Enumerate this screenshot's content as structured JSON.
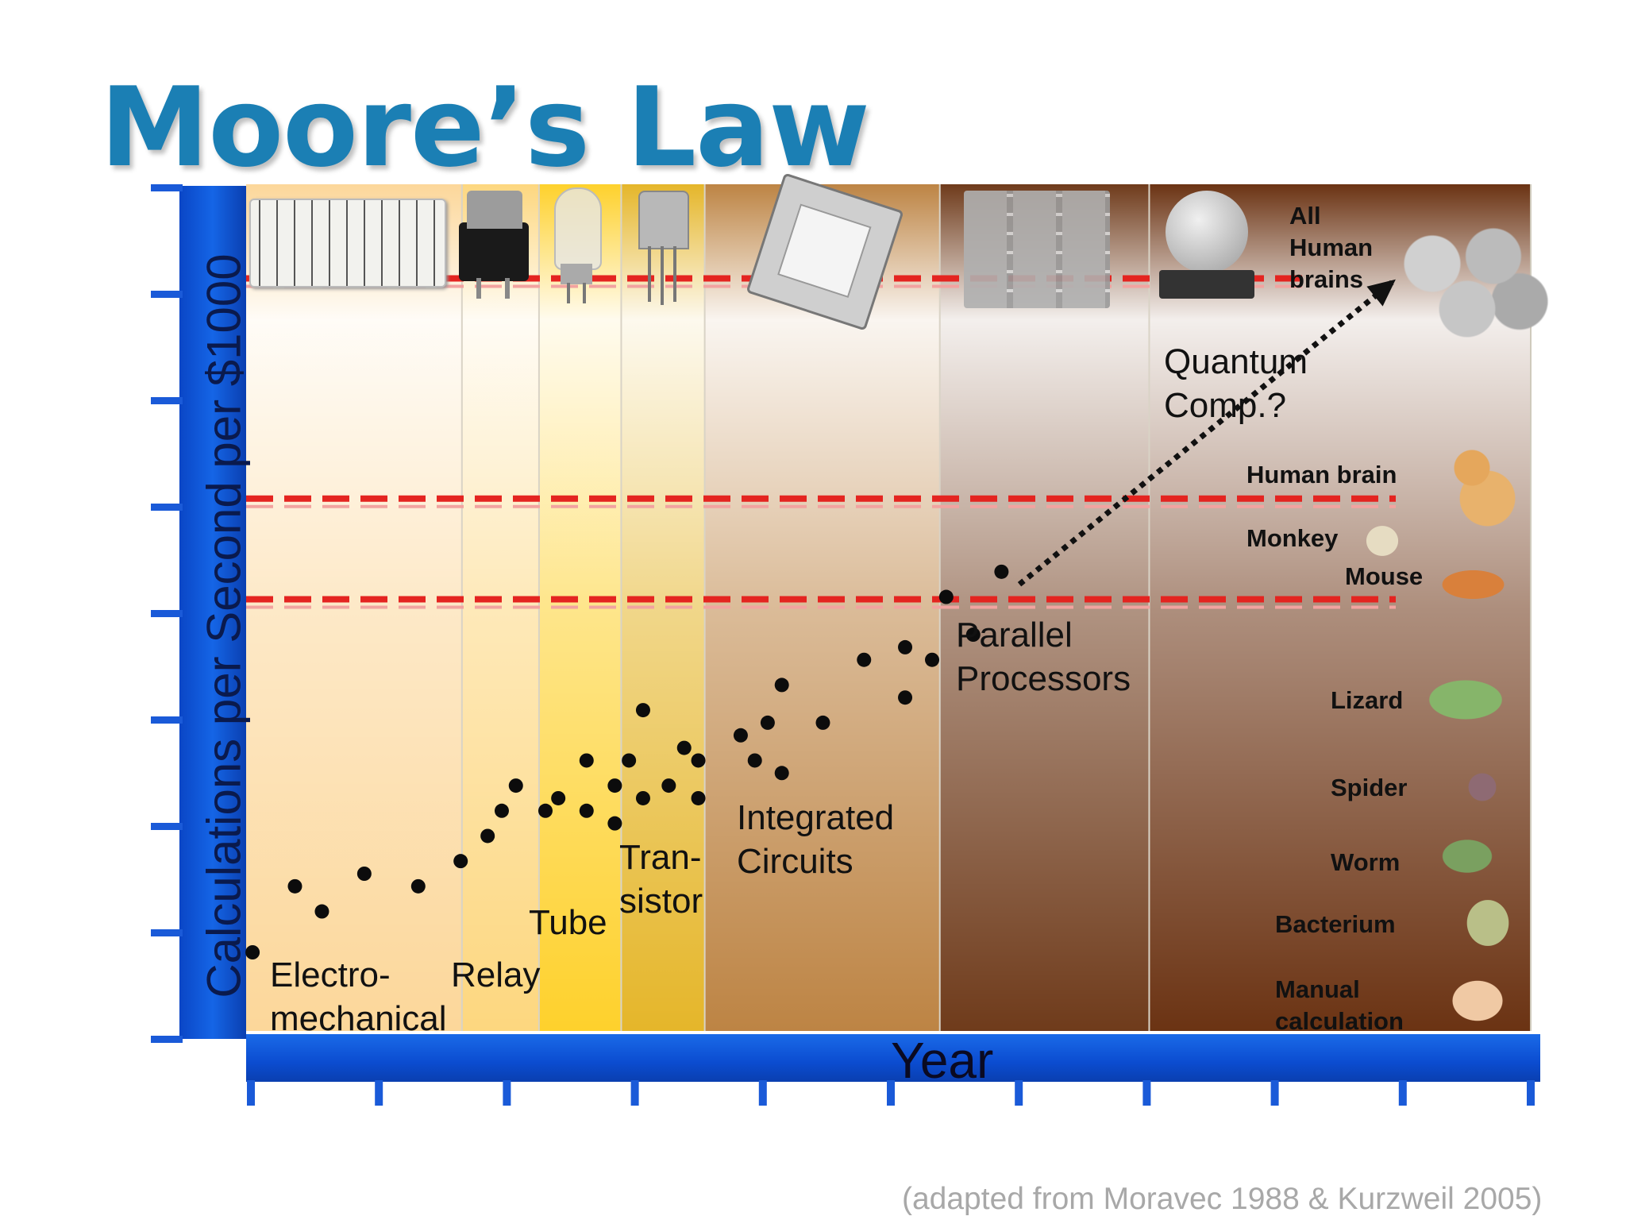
{
  "slide": {
    "title": "Moore’s Law",
    "source": "(adapted from Moravec 1988 & Kurzweil 2005)"
  },
  "chart_data": {
    "type": "scatter",
    "title": "Moore’s Law",
    "xlabel": "Year",
    "ylabel": "Calculations per Second per $1000",
    "x_ticks": 11,
    "y_ticks": 9,
    "xlim": [
      0,
      10
    ],
    "ylim": [
      0,
      8
    ],
    "eras": [
      {
        "label": "Electro-\nmechanical",
        "x_start": 0,
        "x_end": 1.68,
        "color": "#fcd79a"
      },
      {
        "label": "Relay",
        "x_start": 1.68,
        "x_end": 2.28,
        "color": "#fdd77f"
      },
      {
        "label": "Tube",
        "x_start": 2.28,
        "x_end": 2.92,
        "color": "#fed12c"
      },
      {
        "label": "Tran-\nsistor",
        "x_start": 2.92,
        "x_end": 3.57,
        "color": "#e5b62a"
      },
      {
        "label": "Integrated\nCircuits",
        "x_start": 3.57,
        "x_end": 5.4,
        "color": "#bd8444"
      },
      {
        "label": "Parallel\nProcessors",
        "x_start": 5.4,
        "x_end": 7.03,
        "color": "#6f3b1b"
      },
      {
        "label": "Quantum\nComp.?",
        "x_start": 7.03,
        "x_end": 10,
        "color": "#6b3313"
      }
    ],
    "series": [
      {
        "points": [
          [
            0.05,
            0.75
          ],
          [
            0.38,
            1.38
          ],
          [
            0.59,
            1.14
          ],
          [
            0.92,
            1.5
          ],
          [
            1.34,
            1.38
          ],
          [
            1.67,
            1.62
          ],
          [
            1.88,
            1.86
          ],
          [
            1.99,
            2.1
          ],
          [
            2.1,
            2.34
          ],
          [
            2.33,
            2.1
          ],
          [
            2.43,
            2.22
          ],
          [
            2.65,
            2.58
          ],
          [
            2.65,
            2.1
          ],
          [
            2.87,
            2.34
          ],
          [
            2.87,
            1.98
          ],
          [
            2.98,
            2.58
          ],
          [
            3.09,
            2.22
          ],
          [
            3.09,
            3.06
          ],
          [
            3.29,
            2.34
          ],
          [
            3.41,
            2.7
          ],
          [
            3.52,
            2.58
          ],
          [
            3.52,
            2.22
          ],
          [
            3.85,
            2.82
          ],
          [
            3.96,
            2.58
          ],
          [
            4.06,
            2.94
          ],
          [
            4.17,
            2.46
          ],
          [
            4.17,
            3.3
          ],
          [
            4.49,
            2.94
          ],
          [
            4.81,
            3.54
          ],
          [
            5.13,
            3.66
          ],
          [
            5.13,
            3.18
          ],
          [
            5.34,
            3.54
          ],
          [
            5.45,
            4.14
          ],
          [
            5.66,
            3.78
          ],
          [
            5.88,
            4.38
          ]
        ]
      }
    ],
    "projection": {
      "from": [
        6.02,
        4.26
      ],
      "to": [
        8.92,
        7.14
      ]
    },
    "levels": [
      {
        "label": "All\nHuman\nbrains",
        "y": 7.14
      },
      {
        "label": "Human brain",
        "y": 5.04
      },
      {
        "label": "Monkey",
        "y": 4.6
      },
      {
        "label": "Mouse",
        "y": 4.08
      },
      {
        "label": "Lizard",
        "y": 3.0
      },
      {
        "label": "Spider",
        "y": 2.28
      },
      {
        "label": "Worm",
        "y": 1.62
      },
      {
        "label": "Bacterium",
        "y": 1.0
      },
      {
        "label": "Manual\ncalculation",
        "y": 0.3
      }
    ],
    "red_lines_y": [
      7.14,
      5.04,
      4.08
    ],
    "grid": false
  }
}
